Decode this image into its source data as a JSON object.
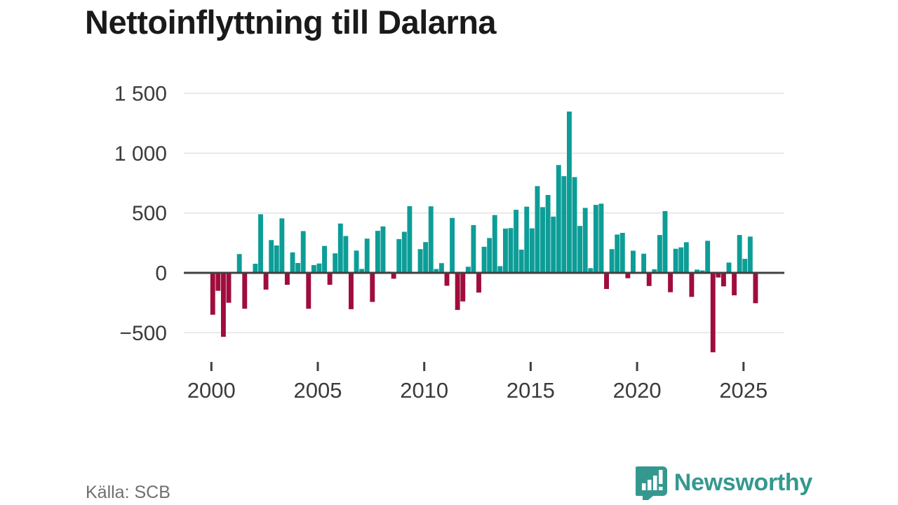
{
  "title": "Nettoinflyttning till Dalarna",
  "source": "Källa: SCB",
  "brand": {
    "name": "Newsworthy",
    "color": "#35988f"
  },
  "chart_data": {
    "type": "bar",
    "title": "Nettoinflyttning till Dalarna",
    "xlabel": "",
    "ylabel": "",
    "frequency": "quarterly",
    "period": "2000Q1–2025Q3",
    "grid": true,
    "ylim": [
      -700,
      1500
    ],
    "colors": {
      "positive": "#0d9d97",
      "negative": "#a00d3d"
    },
    "y_ticks": [
      {
        "label": "1 500",
        "value": 1500
      },
      {
        "label": "1 000",
        "value": 1000
      },
      {
        "label": "500",
        "value": 500
      },
      {
        "label": "0",
        "value": 0
      },
      {
        "label": "−500",
        "value": -500
      }
    ],
    "x_ticks": [
      {
        "label": "2000",
        "index": 0
      },
      {
        "label": "2005",
        "index": 20
      },
      {
        "label": "2010",
        "index": 40
      },
      {
        "label": "2015",
        "index": 60
      },
      {
        "label": "2020",
        "index": 80
      },
      {
        "label": "2025",
        "index": 100
      }
    ],
    "labels": [
      "2000Q1",
      "2000Q2",
      "2000Q3",
      "2000Q4",
      "2001Q1",
      "2001Q2",
      "2001Q3",
      "2001Q4",
      "2002Q1",
      "2002Q2",
      "2002Q3",
      "2002Q4",
      "2003Q1",
      "2003Q2",
      "2003Q3",
      "2003Q4",
      "2004Q1",
      "2004Q2",
      "2004Q3",
      "2004Q4",
      "2005Q1",
      "2005Q2",
      "2005Q3",
      "2005Q4",
      "2006Q1",
      "2006Q2",
      "2006Q3",
      "2006Q4",
      "2007Q1",
      "2007Q2",
      "2007Q3",
      "2007Q4",
      "2008Q1",
      "2008Q2",
      "2008Q3",
      "2008Q4",
      "2009Q1",
      "2009Q2",
      "2009Q3",
      "2009Q4",
      "2010Q1",
      "2010Q2",
      "2010Q3",
      "2010Q4",
      "2011Q1",
      "2011Q2",
      "2011Q3",
      "2011Q4",
      "2012Q1",
      "2012Q2",
      "2012Q3",
      "2012Q4",
      "2013Q1",
      "2013Q2",
      "2013Q3",
      "2013Q4",
      "2014Q1",
      "2014Q2",
      "2014Q3",
      "2014Q4",
      "2015Q1",
      "2015Q2",
      "2015Q3",
      "2015Q4",
      "2016Q1",
      "2016Q2",
      "2016Q3",
      "2016Q4",
      "2017Q1",
      "2017Q2",
      "2017Q3",
      "2017Q4",
      "2018Q1",
      "2018Q2",
      "2018Q3",
      "2018Q4",
      "2019Q1",
      "2019Q2",
      "2019Q3",
      "2019Q4",
      "2020Q1",
      "2020Q2",
      "2020Q3",
      "2020Q4",
      "2021Q1",
      "2021Q2",
      "2021Q3",
      "2021Q4",
      "2022Q1",
      "2022Q2",
      "2022Q3",
      "2022Q4",
      "2023Q1",
      "2023Q2",
      "2023Q3",
      "2023Q4",
      "2024Q1",
      "2024Q2",
      "2024Q3",
      "2024Q4",
      "2025Q1",
      "2025Q2",
      "2025Q3"
    ],
    "values": [
      -350,
      -150,
      -535,
      -250,
      5,
      157,
      -300,
      8,
      76,
      490,
      -140,
      274,
      229,
      455,
      -100,
      171,
      82,
      349,
      -300,
      65,
      78,
      225,
      -100,
      163,
      412,
      308,
      -304,
      186,
      33,
      286,
      -243,
      351,
      388,
      10,
      -49,
      282,
      343,
      557,
      6,
      198,
      257,
      556,
      32,
      81,
      -108,
      459,
      -310,
      -239,
      51,
      399,
      -165,
      218,
      291,
      483,
      56,
      370,
      374,
      527,
      194,
      553,
      372,
      725,
      549,
      651,
      470,
      901,
      808,
      1348,
      800,
      392,
      543,
      39,
      568,
      578,
      -135,
      198,
      320,
      334,
      -45,
      185,
      4,
      160,
      -110,
      30,
      316,
      516,
      -162,
      201,
      213,
      256,
      -201,
      27,
      20,
      268,
      -664,
      -39,
      -113,
      86,
      -188,
      316,
      117,
      303,
      -254
    ]
  }
}
